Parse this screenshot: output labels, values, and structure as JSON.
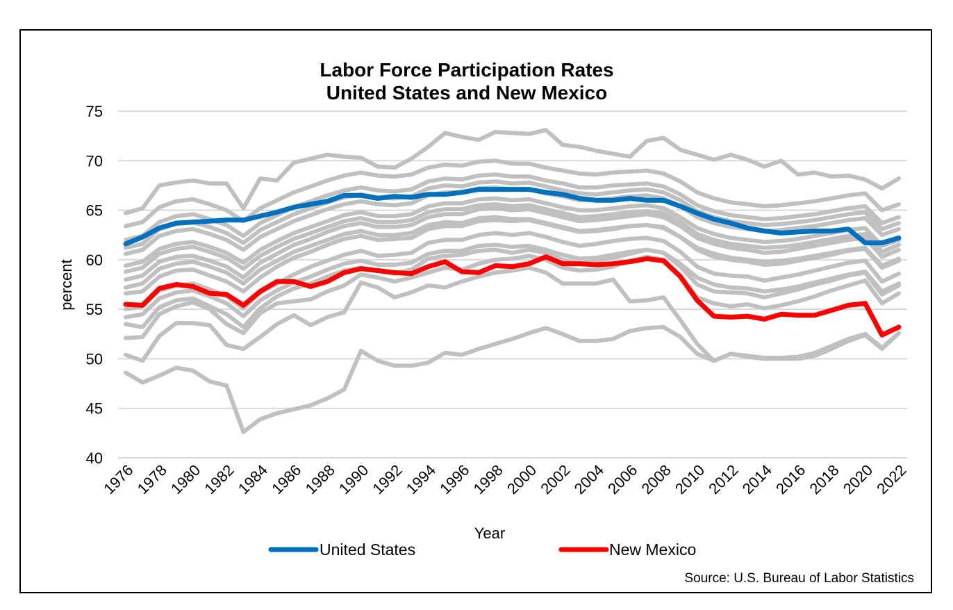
{
  "chart_data": {
    "type": "line",
    "title": "Labor Force Participation Rates",
    "subtitle": "United States and New Mexico",
    "xlabel": "Year",
    "ylabel": "percent",
    "ylim": [
      40,
      75
    ],
    "yticks": [
      "40",
      "45",
      "50",
      "55",
      "60",
      "65",
      "70",
      "75"
    ],
    "xlim": [
      1976,
      2022
    ],
    "xticks": [
      "1976",
      "1978",
      "1980",
      "1982",
      "1984",
      "1986",
      "1988",
      "1990",
      "1992",
      "1994",
      "1996",
      "1998",
      "2000",
      "2002",
      "2004",
      "2006",
      "2008",
      "2010",
      "2012",
      "2014",
      "2016",
      "2018",
      "2020",
      "2022"
    ],
    "grid": "horizontal",
    "legend_position": "bottom",
    "source": "Source: U.S. Bureau of Labor Statistics",
    "x": [
      1976,
      1977,
      1978,
      1979,
      1980,
      1981,
      1982,
      1983,
      1984,
      1985,
      1986,
      1987,
      1988,
      1989,
      1990,
      1991,
      1992,
      1993,
      1994,
      1995,
      1996,
      1997,
      1998,
      1999,
      2000,
      2001,
      2002,
      2003,
      2004,
      2005,
      2006,
      2007,
      2008,
      2009,
      2010,
      2011,
      2012,
      2013,
      2014,
      2015,
      2016,
      2017,
      2018,
      2019,
      2020,
      2021,
      2022
    ],
    "series": [
      {
        "name": "United States",
        "color": "#0070C0",
        "highlight": true,
        "values": [
          61.6,
          62.3,
          63.2,
          63.7,
          63.8,
          63.9,
          64.0,
          64.0,
          64.4,
          64.8,
          65.3,
          65.6,
          65.9,
          66.5,
          66.5,
          66.2,
          66.4,
          66.3,
          66.6,
          66.6,
          66.8,
          67.1,
          67.1,
          67.1,
          67.1,
          66.8,
          66.6,
          66.2,
          66.0,
          66.0,
          66.2,
          66.0,
          66.0,
          65.4,
          64.7,
          64.1,
          63.7,
          63.2,
          62.9,
          62.7,
          62.8,
          62.9,
          62.9,
          63.1,
          61.7,
          61.7,
          62.2
        ]
      },
      {
        "name": "New Mexico",
        "color": "#FF0000",
        "highlight": true,
        "values": [
          55.5,
          55.4,
          57.1,
          57.5,
          57.3,
          56.6,
          56.5,
          55.4,
          56.8,
          57.8,
          57.8,
          57.3,
          57.8,
          58.7,
          59.1,
          58.9,
          58.7,
          58.6,
          59.3,
          59.8,
          58.8,
          58.7,
          59.4,
          59.3,
          59.6,
          60.3,
          59.6,
          59.6,
          59.5,
          59.6,
          59.8,
          60.1,
          59.9,
          58.3,
          55.9,
          54.3,
          54.2,
          54.3,
          54.0,
          54.5,
          54.4,
          54.4,
          54.9,
          55.4,
          55.6,
          52.4,
          53.2
        ]
      }
    ],
    "background_series_color": "#C0C0C0",
    "background_series_note": "Other states (unlabeled gray lines)",
    "background_series": [
      {
        "values": [
          48.6,
          47.6,
          48.3,
          49.1,
          48.8,
          47.7,
          47.3,
          42.6,
          43.9,
          44.5,
          44.9,
          45.3,
          46.0,
          46.9,
          50.8,
          49.8,
          49.3,
          49.3,
          49.6,
          50.6,
          50.4,
          51.0,
          51.5,
          52.0,
          52.6,
          53.1,
          52.5,
          51.8,
          51.8,
          52.0,
          52.8,
          53.1,
          53.2,
          52.2,
          50.5,
          49.8,
          50.5,
          50.2,
          50.0,
          50.0,
          50.0,
          50.3,
          51.0,
          51.8,
          52.4,
          51.0,
          52.6
        ]
      },
      {
        "values": [
          50.4,
          49.8,
          52.3,
          53.6,
          53.6,
          53.4,
          51.4,
          51.0,
          52.2,
          53.5,
          54.4,
          53.4,
          54.2,
          54.7,
          57.7,
          57.2,
          56.2,
          56.7,
          57.4,
          57.2,
          57.8,
          58.3,
          58.7,
          58.9,
          59.2,
          58.7,
          57.6,
          57.6,
          57.6,
          58.0,
          55.8,
          55.9,
          56.2,
          53.9,
          51.5,
          49.8,
          50.5,
          50.3,
          50.1,
          50.1,
          50.2,
          50.6,
          51.3,
          52.0,
          52.5,
          51.1,
          52.6
        ]
      },
      {
        "values": [
          64.7,
          65.2,
          67.5,
          67.8,
          68.0,
          67.7,
          67.7,
          65.2,
          68.2,
          68.0,
          69.8,
          70.2,
          70.6,
          70.4,
          70.3,
          69.4,
          69.3,
          70.2,
          71.4,
          72.8,
          72.4,
          72.1,
          72.9,
          72.8,
          72.7,
          73.1,
          71.6,
          71.4,
          71.0,
          70.7,
          70.4,
          72.0,
          72.3,
          71.1,
          70.6,
          70.1,
          70.6,
          70.1,
          69.4,
          70.0,
          68.6,
          68.8,
          68.4,
          68.5,
          68.1,
          67.2,
          68.2
        ]
      },
      {
        "values": [
          52.1,
          52.2,
          54.5,
          55.3,
          55.7,
          55.0,
          53.5,
          52.6,
          54.6,
          55.6,
          55.8,
          56.0,
          56.8,
          57.4,
          58.5,
          58.2,
          57.8,
          58.2,
          58.7,
          59.2,
          59.0,
          59.6,
          60.0,
          60.1,
          60.4,
          60.0,
          59.2,
          58.9,
          59.0,
          59.3,
          59.9,
          60.3,
          60.0,
          58.4,
          56.2,
          55.6,
          55.3,
          55.5,
          55.1,
          55.4,
          55.8,
          56.3,
          56.9,
          57.4,
          57.9,
          55.6,
          56.6
        ]
      },
      {
        "values": [
          53.5,
          53.2,
          55.2,
          55.9,
          56.1,
          55.3,
          54.5,
          53.2,
          55.1,
          56.3,
          57.1,
          57.6,
          58.3,
          58.9,
          59.2,
          58.9,
          58.6,
          59.0,
          60.1,
          60.4,
          60.5,
          60.9,
          61.0,
          60.7,
          61.0,
          60.7,
          60.0,
          59.6,
          59.9,
          60.2,
          60.6,
          61.0,
          60.7,
          59.3,
          57.5,
          56.8,
          56.7,
          56.6,
          56.2,
          56.6,
          57.0,
          57.5,
          57.9,
          58.4,
          58.7,
          56.5,
          57.4
        ]
      },
      {
        "values": [
          55.0,
          55.3,
          56.9,
          57.4,
          57.6,
          57.0,
          56.3,
          55.1,
          56.7,
          57.6,
          58.5,
          59.3,
          59.9,
          60.5,
          60.9,
          60.4,
          60.5,
          60.7,
          61.7,
          62.0,
          62.0,
          62.5,
          62.7,
          62.5,
          62.7,
          62.3,
          61.8,
          61.4,
          61.6,
          61.9,
          62.1,
          62.2,
          61.9,
          60.8,
          59.3,
          58.6,
          58.4,
          58.3,
          57.9,
          58.2,
          58.5,
          58.9,
          59.3,
          59.7,
          59.9,
          57.8,
          58.6
        ]
      },
      {
        "values": [
          56.6,
          56.8,
          58.3,
          58.9,
          59.0,
          58.4,
          57.8,
          56.8,
          58.2,
          59.3,
          60.2,
          60.8,
          61.5,
          62.1,
          62.4,
          62.0,
          62.1,
          62.2,
          63.1,
          63.4,
          63.4,
          63.9,
          64.0,
          63.9,
          64.0,
          63.6,
          63.2,
          62.8,
          62.9,
          63.1,
          63.4,
          63.5,
          63.3,
          62.3,
          61.0,
          60.3,
          60.0,
          59.8,
          59.5,
          59.6,
          59.9,
          60.2,
          60.5,
          60.9,
          61.1,
          59.2,
          59.9
        ]
      },
      {
        "values": [
          58.0,
          58.4,
          59.8,
          60.3,
          60.4,
          59.9,
          59.3,
          58.2,
          59.7,
          60.6,
          61.5,
          62.1,
          62.8,
          63.4,
          63.7,
          63.3,
          63.3,
          63.5,
          64.3,
          64.6,
          64.6,
          65.1,
          65.2,
          65.0,
          65.1,
          64.7,
          64.3,
          63.9,
          64.0,
          64.2,
          64.4,
          64.6,
          64.3,
          63.4,
          62.2,
          61.6,
          61.2,
          61.0,
          60.7,
          60.8,
          61.1,
          61.4,
          61.7,
          62.0,
          62.2,
          60.3,
          61.0
        ]
      },
      {
        "values": [
          59.4,
          59.8,
          61.1,
          61.6,
          61.8,
          61.3,
          60.7,
          59.7,
          61.0,
          61.9,
          62.7,
          63.3,
          63.9,
          64.5,
          64.8,
          64.4,
          64.4,
          64.6,
          65.4,
          65.7,
          65.7,
          66.1,
          66.2,
          66.0,
          66.1,
          65.7,
          65.3,
          65.0,
          65.0,
          65.2,
          65.4,
          65.5,
          65.2,
          64.3,
          63.2,
          62.6,
          62.2,
          62.0,
          61.8,
          61.9,
          62.1,
          62.4,
          62.7,
          63.0,
          63.2,
          61.4,
          62.0
        ]
      },
      {
        "values": [
          60.6,
          61.0,
          62.4,
          62.9,
          63.1,
          62.6,
          62.0,
          61.0,
          62.3,
          63.1,
          63.9,
          64.5,
          65.1,
          65.6,
          65.9,
          65.6,
          65.5,
          65.7,
          66.5,
          66.8,
          66.8,
          67.2,
          67.3,
          67.1,
          67.1,
          66.7,
          66.4,
          66.0,
          66.0,
          66.2,
          66.4,
          66.5,
          66.2,
          65.4,
          64.3,
          63.7,
          63.3,
          63.1,
          62.9,
          63.0,
          63.2,
          63.4,
          63.7,
          64.0,
          64.2,
          62.5,
          63.1
        ]
      },
      {
        "values": [
          62.0,
          62.4,
          63.8,
          64.4,
          64.6,
          64.1,
          63.5,
          62.4,
          63.7,
          64.5,
          65.3,
          65.9,
          66.5,
          67.0,
          67.3,
          67.0,
          66.9,
          67.1,
          67.9,
          68.2,
          68.1,
          68.5,
          68.6,
          68.4,
          68.4,
          68.0,
          67.7,
          67.3,
          67.3,
          67.5,
          67.6,
          67.7,
          67.4,
          66.6,
          65.5,
          64.9,
          64.5,
          64.3,
          64.1,
          64.2,
          64.4,
          64.6,
          64.9,
          65.2,
          65.4,
          63.7,
          64.3
        ]
      },
      {
        "values": [
          63.4,
          63.8,
          65.3,
          65.9,
          66.1,
          65.6,
          65.0,
          63.9,
          65.2,
          66.0,
          66.8,
          67.4,
          68.0,
          68.5,
          68.8,
          68.5,
          68.4,
          68.6,
          69.3,
          69.6,
          69.5,
          69.9,
          70.0,
          69.7,
          69.7,
          69.3,
          69.0,
          68.7,
          68.6,
          68.8,
          68.9,
          69.0,
          68.7,
          67.9,
          66.8,
          66.2,
          65.8,
          65.6,
          65.4,
          65.5,
          65.7,
          65.9,
          66.2,
          66.5,
          66.7,
          65.0,
          65.6
        ]
      },
      {
        "values": [
          57.2,
          57.6,
          59.1,
          59.6,
          59.8,
          59.3,
          58.7,
          57.6,
          59.0,
          59.9,
          60.8,
          61.4,
          62.0,
          62.6,
          62.9,
          62.5,
          62.5,
          62.7,
          63.5,
          63.8,
          63.7,
          64.2,
          64.3,
          64.1,
          64.1,
          63.7,
          63.3,
          62.9,
          63.0,
          63.2,
          63.4,
          63.5,
          63.2,
          62.3,
          61.2,
          60.6,
          60.2,
          60.0,
          59.8,
          59.9,
          60.1,
          60.4,
          60.7,
          61.0,
          61.2,
          59.4,
          60.1
        ]
      },
      {
        "values": [
          54.2,
          54.5,
          56.1,
          56.7,
          56.9,
          56.3,
          55.6,
          54.3,
          55.9,
          56.9,
          57.7,
          58.3,
          59.0,
          59.6,
          59.9,
          59.5,
          59.5,
          59.7,
          60.6,
          60.9,
          60.9,
          61.4,
          61.5,
          61.3,
          61.4,
          61.0,
          60.5,
          60.1,
          60.2,
          60.5,
          60.8,
          61.0,
          60.7,
          59.6,
          58.2,
          57.5,
          57.2,
          57.1,
          56.8,
          57.0,
          57.3,
          57.7,
          58.1,
          58.5,
          58.8,
          56.8,
          57.6
        ]
      },
      {
        "values": [
          61.2,
          61.6,
          63.1,
          63.6,
          63.8,
          63.3,
          62.7,
          61.7,
          63.0,
          63.8,
          64.6,
          65.2,
          65.8,
          66.3,
          66.6,
          66.3,
          66.2,
          66.4,
          67.2,
          67.5,
          67.4,
          67.8,
          67.9,
          67.7,
          67.8,
          67.4,
          67.0,
          66.7,
          66.6,
          66.8,
          67.0,
          67.1,
          66.8,
          66.0,
          64.9,
          64.3,
          63.9,
          63.7,
          63.5,
          63.6,
          63.8,
          64.0,
          64.3,
          64.6,
          64.8,
          63.1,
          63.7
        ]
      },
      {
        "values": [
          58.8,
          59.2,
          60.6,
          61.1,
          61.3,
          60.8,
          60.2,
          59.1,
          60.4,
          61.3,
          62.1,
          62.7,
          63.3,
          63.9,
          64.2,
          63.8,
          63.8,
          64.0,
          64.8,
          65.1,
          65.1,
          65.5,
          65.6,
          65.4,
          65.5,
          65.1,
          64.7,
          64.3,
          64.4,
          64.6,
          64.8,
          64.9,
          64.7,
          63.8,
          62.6,
          62.0,
          61.6,
          61.4,
          61.2,
          61.3,
          61.5,
          61.8,
          62.1,
          62.4,
          62.6,
          60.8,
          61.5
        ]
      }
    ]
  }
}
